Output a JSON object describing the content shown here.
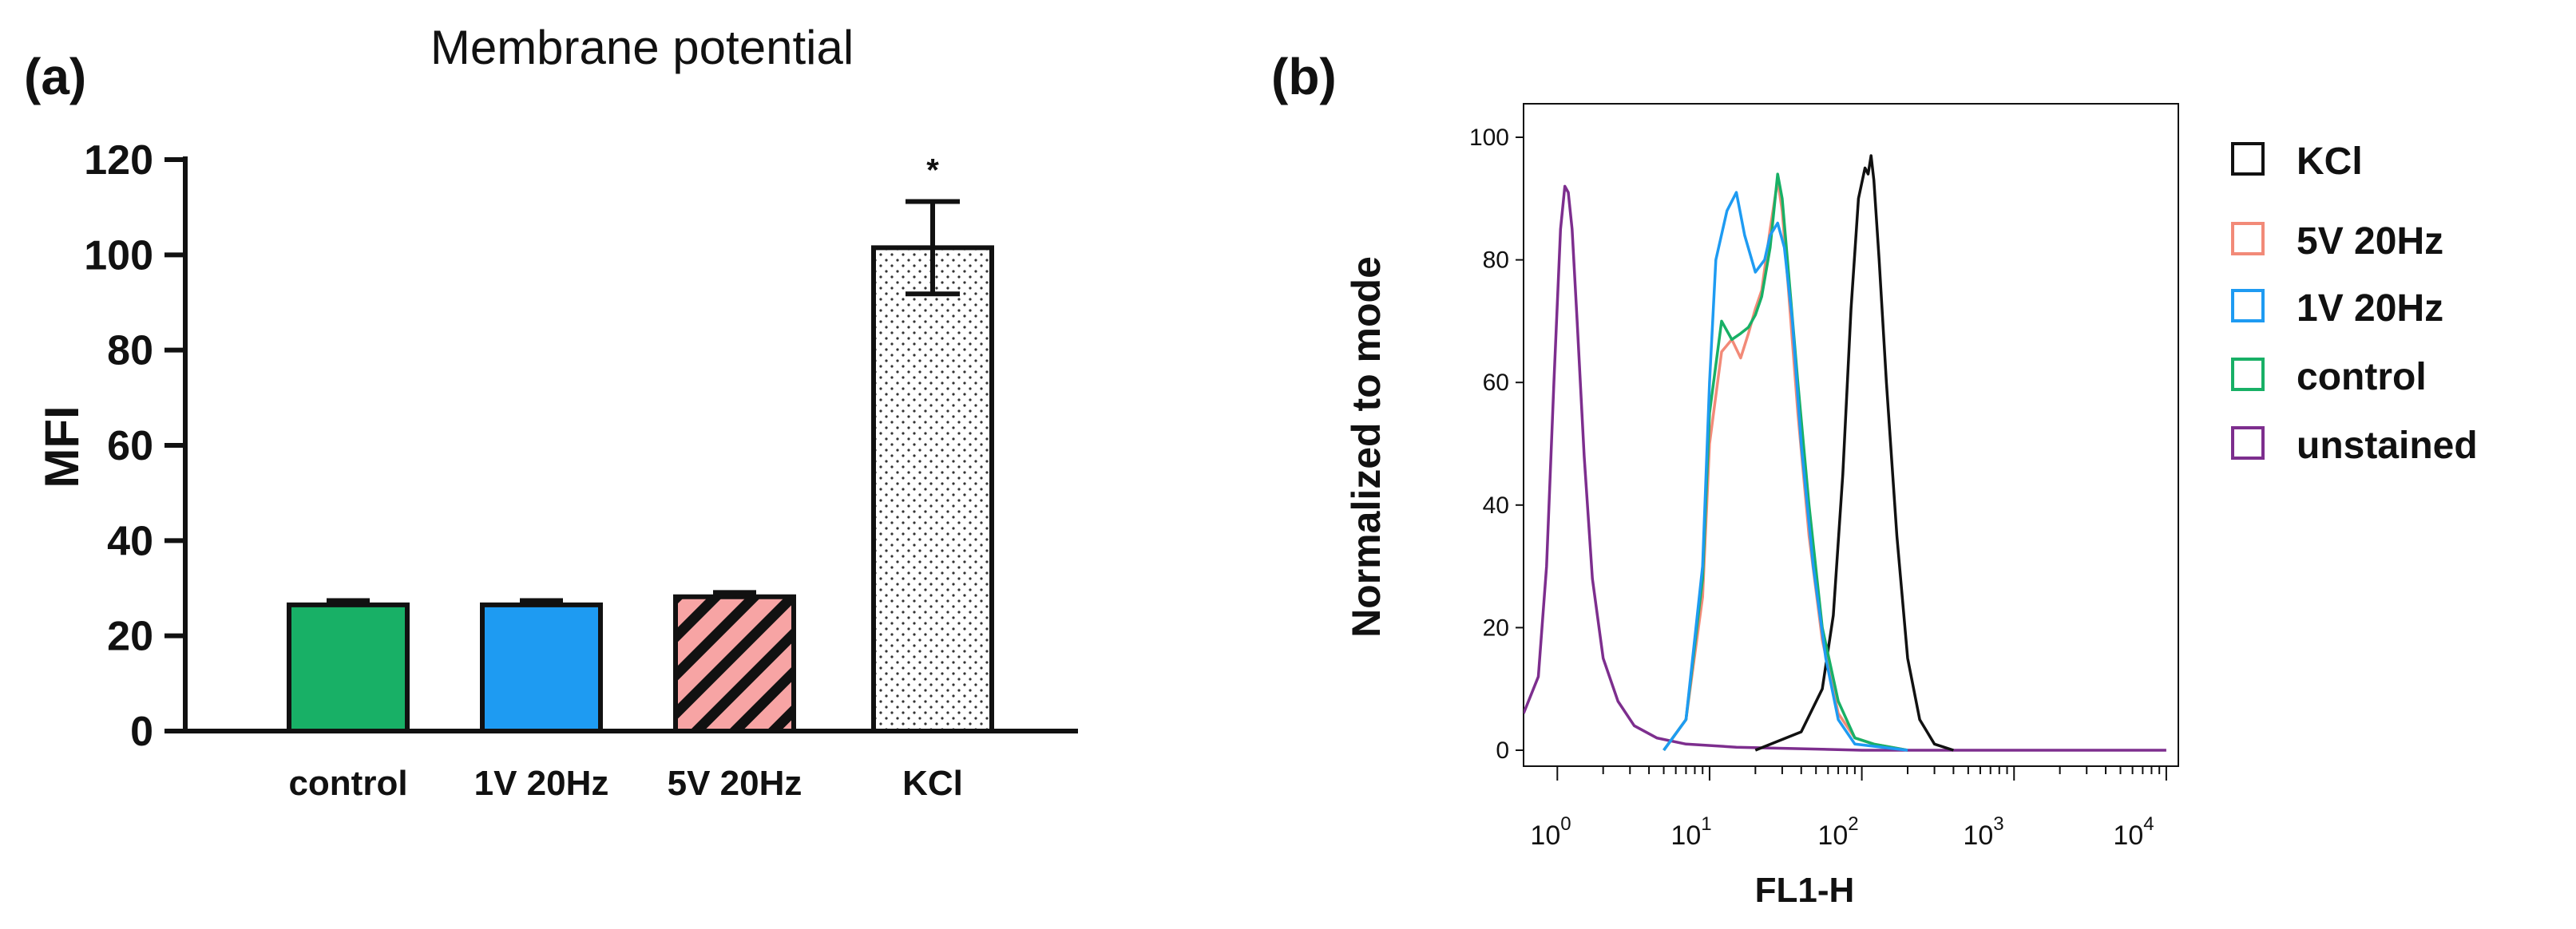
{
  "panel_a_label": "(a)",
  "panel_b_label": "(b)",
  "chart_data": [
    {
      "type": "bar",
      "title": "Membrane potential",
      "ylabel": "MFI",
      "xlabel": "",
      "ylim": [
        0,
        120
      ],
      "yticks": [
        "0",
        "20",
        "40",
        "60",
        "80",
        "100",
        "120"
      ],
      "categories": [
        "control",
        "1V 20Hz",
        "5V 20Hz",
        "KCl"
      ],
      "values": [
        26.5,
        26.5,
        28.2,
        101.5
      ],
      "errors": [
        0.9,
        0.9,
        0.9,
        9.7
      ],
      "significance": [
        "",
        "",
        "",
        "*"
      ],
      "colors": [
        "#18b066",
        "#1e9bf2",
        "#f7a4a4",
        "#ffffff"
      ],
      "patterns": [
        "solid",
        "solid",
        "diagonal-stripes",
        "dots"
      ]
    },
    {
      "type": "line",
      "title": "",
      "ylabel": "Normalized to mode",
      "xlabel": "FL1-H",
      "x_scale": "log",
      "xlim": [
        0.6,
        12000
      ],
      "ylim": [
        0,
        100
      ],
      "yticks": [
        "0",
        "20",
        "40",
        "60",
        "80",
        "100"
      ],
      "xticks": [
        {
          "base": "10",
          "exp": "0"
        },
        {
          "base": "10",
          "exp": "1"
        },
        {
          "base": "10",
          "exp": "2"
        },
        {
          "base": "10",
          "exp": "3"
        },
        {
          "base": "10",
          "exp": "4"
        }
      ],
      "legend_position": "right",
      "series": [
        {
          "name": "KCl",
          "color": "#111111",
          "x": [
            20,
            40,
            55,
            65,
            75,
            85,
            95,
            105,
            110,
            115,
            120,
            130,
            145,
            170,
            200,
            240,
            300,
            400
          ],
          "y": [
            0,
            3,
            10,
            22,
            45,
            72,
            90,
            95,
            94,
            97,
            93,
            80,
            60,
            35,
            15,
            5,
            1,
            0
          ]
        },
        {
          "name": "5V 20Hz",
          "color": "#f28a78",
          "x": [
            5,
            7,
            9,
            10,
            12,
            14,
            16,
            18,
            20,
            22,
            25,
            28,
            30,
            33,
            38,
            45,
            55,
            70,
            90,
            120,
            200
          ],
          "y": [
            0,
            5,
            25,
            50,
            65,
            67,
            64,
            68,
            72,
            75,
            85,
            93,
            88,
            75,
            55,
            35,
            18,
            6,
            2,
            1,
            0
          ]
        },
        {
          "name": "1V 20Hz",
          "color": "#1e9bf2",
          "x": [
            5,
            7,
            9,
            10,
            11,
            13,
            15,
            17,
            20,
            23,
            25,
            28,
            31,
            35,
            40,
            48,
            58,
            70,
            90,
            200
          ],
          "y": [
            0,
            5,
            30,
            60,
            80,
            88,
            91,
            84,
            78,
            80,
            84,
            86,
            82,
            70,
            50,
            30,
            15,
            5,
            1,
            0
          ]
        },
        {
          "name": "control",
          "color": "#18b066",
          "x": [
            5,
            7,
            9,
            10,
            12,
            14,
            16,
            18,
            20,
            22,
            25,
            28,
            30,
            33,
            38,
            45,
            55,
            70,
            90,
            120,
            200
          ],
          "y": [
            0,
            5,
            28,
            55,
            70,
            67,
            68,
            69,
            71,
            74,
            82,
            94,
            90,
            78,
            60,
            40,
            20,
            8,
            2,
            1,
            0
          ]
        },
        {
          "name": "unstained",
          "color": "#7d2e8e",
          "x": [
            0.6,
            0.75,
            0.85,
            0.95,
            1.05,
            1.12,
            1.18,
            1.25,
            1.35,
            1.5,
            1.7,
            2.0,
            2.5,
            3.2,
            4.5,
            7,
            15,
            100,
            1000,
            10000
          ],
          "y": [
            6,
            12,
            30,
            60,
            85,
            92,
            91,
            85,
            70,
            48,
            28,
            15,
            8,
            4,
            2,
            1,
            0.5,
            0,
            0,
            0
          ]
        }
      ]
    }
  ]
}
